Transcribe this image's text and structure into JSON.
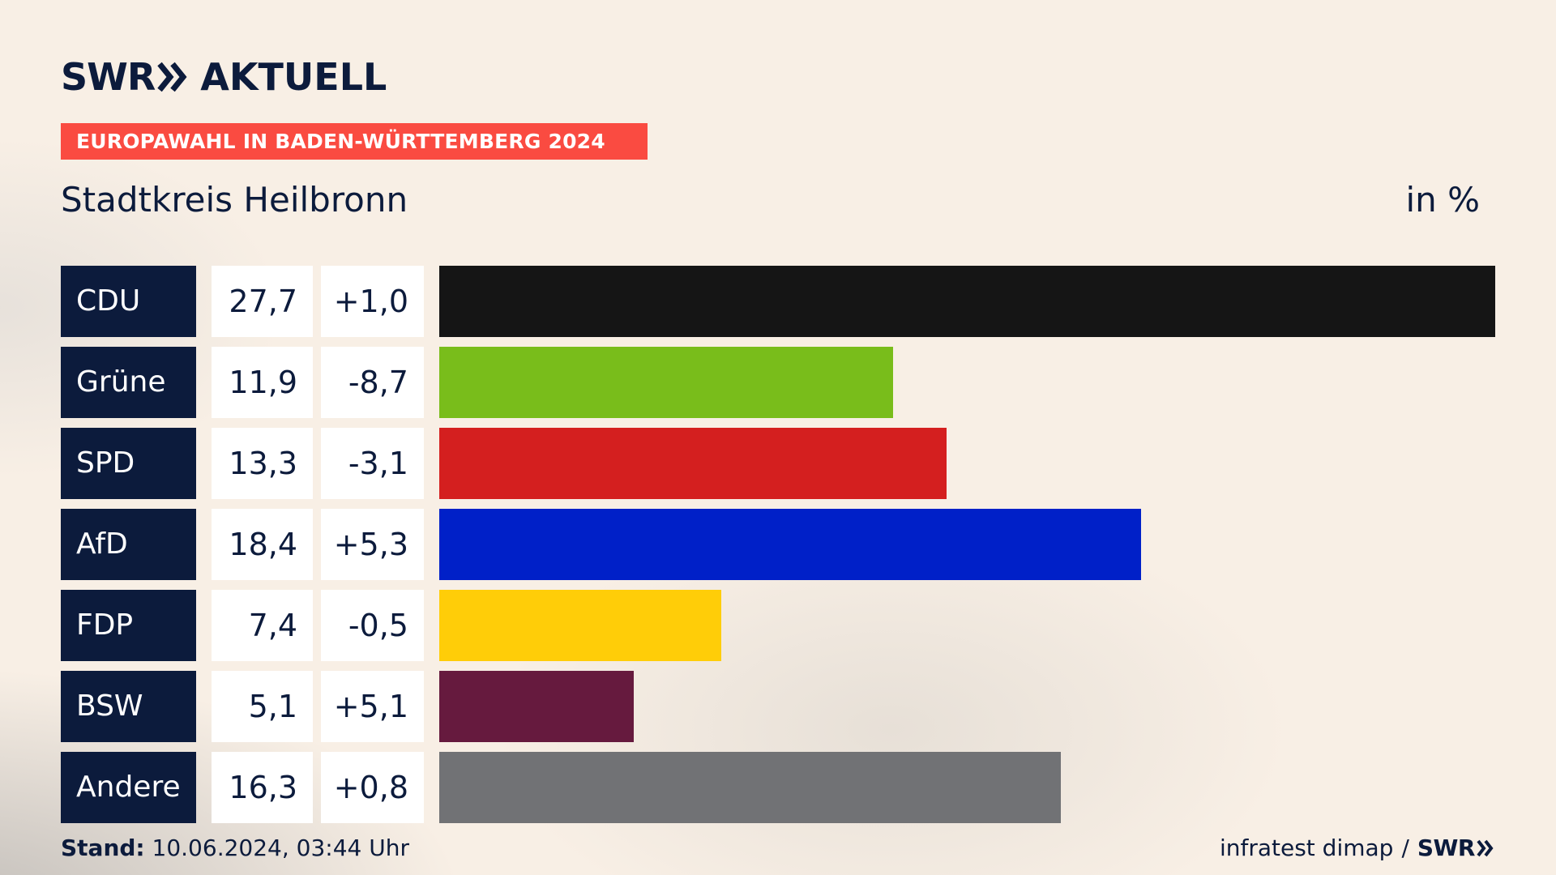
{
  "logo": {
    "brand_a": "SWR",
    "brand_b": "AKTUELL",
    "chevron_icon": "double-chevron-right-icon"
  },
  "banner": {
    "text": "EUROPAWAHL IN BADEN-WÜRTTEMBERG 2024"
  },
  "subtitle": "Stadtkreis Heilbronn",
  "unit_label": "in %",
  "colors": {
    "navy": "#0c1b3c",
    "banner_red": "#fa4b41",
    "background": "#f8efe5"
  },
  "chart_data": {
    "type": "bar",
    "orientation": "horizontal",
    "categories": [
      "CDU",
      "Grüne",
      "SPD",
      "AfD",
      "FDP",
      "BSW",
      "Andere"
    ],
    "values": [
      27.7,
      11.9,
      13.3,
      18.4,
      7.4,
      5.1,
      16.3
    ],
    "value_labels": [
      "27,7",
      "11,9",
      "13,3",
      "18,4",
      "7,4",
      "5,1",
      "16,3"
    ],
    "changes": [
      1.0,
      -8.7,
      -3.1,
      5.3,
      -0.5,
      5.1,
      0.8
    ],
    "change_labels": [
      "+1,0",
      "-8,7",
      "-3,1",
      "+5,3",
      "-0,5",
      "+5,1",
      "+0,8"
    ],
    "bar_colors": [
      "#151515",
      "#79bd1b",
      "#d41f1f",
      "#0020c8",
      "#ffcd08",
      "#661a3e",
      "#717275"
    ],
    "xlim": [
      0,
      27.7
    ],
    "grid": false,
    "legend": "none"
  },
  "footer": {
    "stand_label": "Stand:",
    "stand_value": "10.06.2024, 03:44 Uhr",
    "source": "infratest dimap",
    "separator": "/",
    "source_brand": "SWR"
  }
}
